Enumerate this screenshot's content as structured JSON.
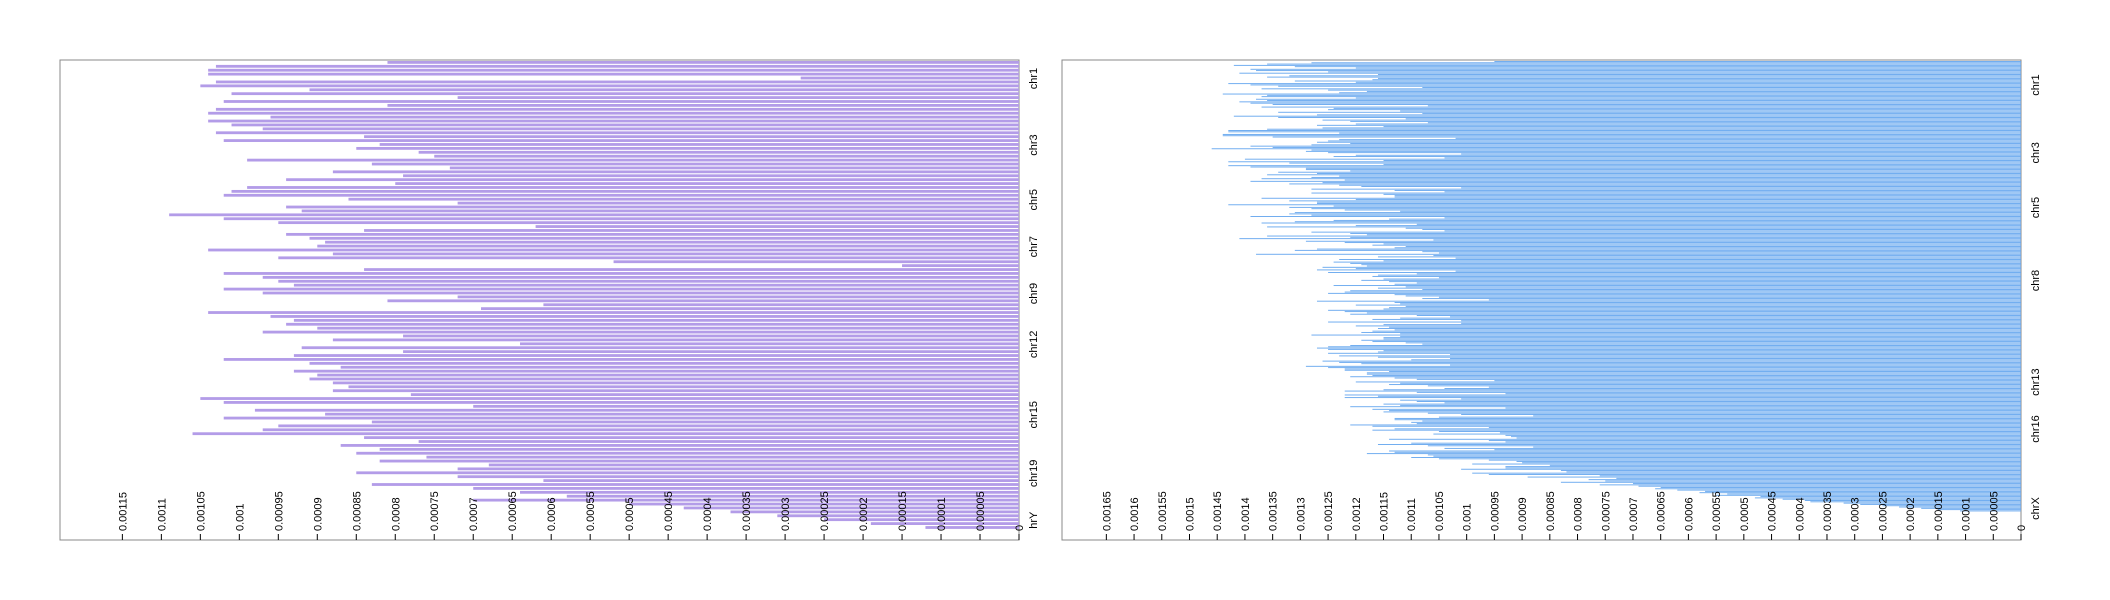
{
  "chart_data": [
    {
      "type": "bar",
      "orientation": "horizontal",
      "bar_color": "#b39ce8",
      "xlim": [
        0,
        0.00123
      ],
      "x_tick_labels": [
        "0.00115",
        "0.0011",
        "0.00105",
        "0.001",
        "0.00095",
        "0.0009",
        "0.00085",
        "0.0008",
        "0.00075",
        "0.0007",
        "0.00065",
        "0.0006",
        "0.00055",
        "0.0005",
        "0.00045",
        "0.0004",
        "0.00035",
        "0.0003",
        "0.00025",
        "0.0002",
        "0.00015",
        "0.0001",
        "0.00005",
        "0"
      ],
      "x_tick_values": [
        0.00115,
        0.0011,
        0.00105,
        0.001,
        0.00095,
        0.0009,
        0.00085,
        0.0008,
        0.00075,
        0.0007,
        0.00065,
        0.0006,
        0.00055,
        0.0005,
        0.00045,
        0.0004,
        0.00035,
        0.0003,
        0.00025,
        0.0002,
        0.00015,
        0.0001,
        5e-05,
        0
      ],
      "bar_count": 120,
      "group_labels": [
        {
          "label": "chr1",
          "index": 4
        },
        {
          "label": "chr3",
          "index": 21
        },
        {
          "label": "chr5",
          "index": 35
        },
        {
          "label": "chr7",
          "index": 47
        },
        {
          "label": "chr9",
          "index": 59
        },
        {
          "label": "chr12",
          "index": 72
        },
        {
          "label": "chr15",
          "index": 90
        },
        {
          "label": "chr19",
          "index": 105
        },
        {
          "label": "hrY",
          "index": 117
        }
      ],
      "values": [
        0.00081,
        0.00103,
        0.00104,
        0.00104,
        0.00028,
        0.00103,
        0.00105,
        0.00091,
        0.00101,
        0.00072,
        0.00102,
        0.00081,
        0.00103,
        0.00104,
        0.00096,
        0.00104,
        0.00101,
        0.00097,
        0.00103,
        0.00084,
        0.00102,
        0.00082,
        0.00085,
        0.00077,
        0.00075,
        0.00099,
        0.00083,
        0.00073,
        0.00088,
        0.00079,
        0.00094,
        0.0008,
        0.00099,
        0.00101,
        0.00102,
        0.00086,
        0.00072,
        0.00094,
        0.00092,
        0.00109,
        0.00102,
        0.00095,
        0.00062,
        0.00084,
        0.00094,
        0.00091,
        0.00089,
        0.0009,
        0.00104,
        0.00088,
        0.00095,
        0.00052,
        0.00015,
        0.00084,
        0.00102,
        0.00097,
        0.00095,
        0.00093,
        0.00102,
        0.00097,
        0.00072,
        0.00081,
        0.00061,
        0.00069,
        0.00104,
        0.00096,
        0.00093,
        0.00094,
        0.0009,
        0.00097,
        0.00079,
        0.00088,
        0.00064,
        0.00092,
        0.00079,
        0.00093,
        0.00102,
        0.00091,
        0.00087,
        0.00093,
        0.0009,
        0.00091,
        0.00088,
        0.00086,
        0.00088,
        0.00078,
        0.00105,
        0.00102,
        0.0007,
        0.00098,
        0.00089,
        0.00102,
        0.00083,
        0.00095,
        0.00097,
        0.00106,
        0.00084,
        0.00077,
        0.00087,
        0.00082,
        0.00085,
        0.00076,
        0.00082,
        0.00068,
        0.00072,
        0.00085,
        0.00072,
        0.00061,
        0.00083,
        0.0007,
        0.00064,
        0.00058,
        0.0007,
        0.0005,
        0.00043,
        0.00037,
        0.00031,
        0.00025,
        0.00019,
        0.00012
      ]
    },
    {
      "type": "bar",
      "orientation": "horizontal",
      "bar_color": "#6aa9ef",
      "xlim": [
        0,
        0.00173
      ],
      "x_tick_labels": [
        "0.00165",
        "0.0016",
        "0.00155",
        "0.0015",
        "0.00145",
        "0.0014",
        "0.00135",
        "0.0013",
        "0.00125",
        "0.0012",
        "0.00115",
        "0.0011",
        "0.00105",
        "0.001",
        "0.00095",
        "0.0009",
        "0.00085",
        "0.0008",
        "0.00075",
        "0.0007",
        "0.00065",
        "0.0006",
        "0.00055",
        "0.0005",
        "0.00045",
        "0.0004",
        "0.00035",
        "0.0003",
        "0.00025",
        "0.0002",
        "0.00015",
        "0.0001",
        "0.00005",
        "0"
      ],
      "x_tick_values": [
        0.00165,
        0.0016,
        0.00155,
        0.0015,
        0.00145,
        0.0014,
        0.00135,
        0.0013,
        0.00125,
        0.0012,
        0.00115,
        0.0011,
        0.00105,
        0.001,
        0.00095,
        0.0009,
        0.00085,
        0.0008,
        0.00075,
        0.0007,
        0.00065,
        0.0006,
        0.00055,
        0.0005,
        0.00045,
        0.0004,
        0.00035,
        0.0003,
        0.00025,
        0.0002,
        0.00015,
        0.0001,
        5e-05,
        0
      ],
      "bar_count": 360,
      "group_labels": [
        {
          "label": "chr1",
          "index": 18
        },
        {
          "label": "chr3",
          "index": 70
        },
        {
          "label": "chr5",
          "index": 112
        },
        {
          "label": "chr8",
          "index": 168
        },
        {
          "label": "chr13",
          "index": 246
        },
        {
          "label": "chr16",
          "index": 282
        },
        {
          "label": "chrX",
          "index": 343
        }
      ],
      "values": [
        0.00095,
        0.00128,
        0.00136,
        0.00142,
        0.00131,
        0.0012,
        0.00139,
        0.00138,
        0.00125,
        0.00141,
        0.00116,
        0.00132,
        0.00136,
        0.00116,
        0.00117,
        0.00131,
        0.0012,
        0.00143,
        0.00139,
        0.00134,
        0.00108,
        0.00137,
        0.00125,
        0.00118,
        0.00123,
        0.00144,
        0.00136,
        0.00137,
        0.0012,
        0.00138,
        0.00136,
        0.00141,
        0.00139,
        0.00135,
        0.00107,
        0.00137,
        0.00124,
        0.00125,
        0.00112,
        0.00134,
        0.00108,
        0.00127,
        0.00142,
        0.00134,
        0.00111,
        0.00126,
        0.00121,
        0.00107,
        0.0012,
        0.00127,
        0.00115,
        0.00126,
        0.00136,
        0.00143,
        0.00143,
        0.00123,
        0.00144,
        0.00144,
        0.00135,
        0.00102,
        0.00123,
        0.00125,
        0.00127,
        0.00121,
        0.00128,
        0.00139,
        0.00135,
        0.00146,
        0.00128,
        0.00129,
        0.00125,
        0.00101,
        0.0012,
        0.00124,
        0.00104,
        0.0014,
        0.00115,
        0.00143,
        0.00132,
        0.00115,
        0.00143,
        0.00139,
        0.00129,
        0.00129,
        0.00121,
        0.00134,
        0.00127,
        0.00136,
        0.00123,
        0.00128,
        0.00137,
        0.00122,
        0.00139,
        0.00126,
        0.00132,
        0.00123,
        0.00119,
        0.00101,
        0.00128,
        0.00113,
        0.00104,
        0.00128,
        0.00115,
        0.00113,
        0.00113,
        0.00137,
        0.0012,
        0.00132,
        0.00127,
        0.00127,
        0.00143,
        0.00124,
        0.00132,
        0.00128,
        0.00122,
        0.00112,
        0.00131,
        0.00132,
        0.00128,
        0.00139,
        0.00104,
        0.00114,
        0.00124,
        0.00131,
        0.00137,
        0.00109,
        0.0012,
        0.00136,
        0.00111,
        0.00108,
        0.00104,
        0.00128,
        0.00121,
        0.00118,
        0.00136,
        0.00121,
        0.00141,
        0.00106,
        0.00129,
        0.00122,
        0.00115,
        0.00117,
        0.00111,
        0.00113,
        0.00127,
        0.00131,
        0.00108,
        0.00105,
        0.00138,
        0.00106,
        0.00116,
        0.00102,
        0.00123,
        0.00115,
        0.00124,
        0.00121,
        0.00119,
        0.00118,
        0.00126,
        0.0012,
        0.00127,
        0.00102,
        0.00125,
        0.00109,
        0.00116,
        0.00117,
        0.00105,
        0.00115,
        0.00119,
        0.00114,
        0.00109,
        0.00113,
        0.00124,
        0.00111,
        0.00116,
        0.00108,
        0.00121,
        0.00122,
        0.00125,
        0.00113,
        0.00111,
        0.00105,
        0.00108,
        0.00096,
        0.00127,
        0.00113,
        0.00112,
        0.0012,
        0.00111,
        0.00114,
        0.00115,
        0.00125,
        0.00122,
        0.00118,
        0.00121,
        0.00109,
        0.00103,
        0.00112,
        0.00117,
        0.00101,
        0.00125,
        0.00101,
        0.00115,
        0.0012,
        0.00114,
        0.00116,
        0.00113,
        0.00117,
        0.00119,
        0.00112,
        0.00128,
        0.00112,
        0.00115,
        0.00115,
        0.00119,
        0.00117,
        0.00111,
        0.00108,
        0.00121,
        0.00125,
        0.00127,
        0.00125,
        0.00115,
        0.00116,
        0.00125,
        0.00103,
        0.00123,
        0.00116,
        0.00103,
        0.0011,
        0.00126,
        0.00123,
        0.00119,
        0.00103,
        0.00129,
        0.00125,
        0.00122,
        0.00122,
        0.00114,
        0.00118,
        0.00118,
        0.00117,
        0.00121,
        0.00113,
        0.00109,
        0.00095,
        0.0012,
        0.00112,
        0.00114,
        0.00107,
        0.00096,
        0.00104,
        0.00115,
        0.00122,
        0.00109,
        0.00093,
        0.00122,
        0.00116,
        0.00122,
        0.00101,
        0.00112,
        0.00109,
        0.00104,
        0.00115,
        0.00112,
        0.00121,
        0.00093,
        0.00117,
        0.00114,
        0.00115,
        0.00107,
        0.00101,
        0.00088,
        0.00105,
        0.00113,
        0.00113,
        0.00108,
        0.0011,
        0.00109,
        0.00121,
        0.00117,
        0.00096,
        0.00113,
        0.00117,
        0.00105,
        0.00094,
        0.00106,
        0.00093,
        0.00092,
        0.00091,
        0.00114,
        0.00096,
        0.00093,
        0.0011,
        0.00116,
        0.00107,
        0.00088,
        0.00104,
        0.00095,
        0.00114,
        0.00113,
        0.00118,
        0.00107,
        0.00106,
        0.0011,
        0.00105,
        0.00096,
        0.00091,
        0.0009,
        0.00099,
        0.00085,
        0.00093,
        0.00093,
        0.00101,
        0.00083,
        0.00082,
        0.00099,
        0.00096,
        0.00076,
        0.00089,
        0.00073,
        0.00078,
        0.00075,
        0.00083,
        0.0007,
        0.00076,
        0.00069,
        0.00065,
        0.00066,
        0.00062,
        0.00057,
        0.00058,
        0.00053,
        0.00055,
        0.00047,
        0.00048,
        0.00043,
        0.00039,
        0.00038,
        0.00032,
        0.00029,
        0.00025,
        0.00022,
        0.00018,
        0.00015,
        0.00011
      ]
    }
  ]
}
